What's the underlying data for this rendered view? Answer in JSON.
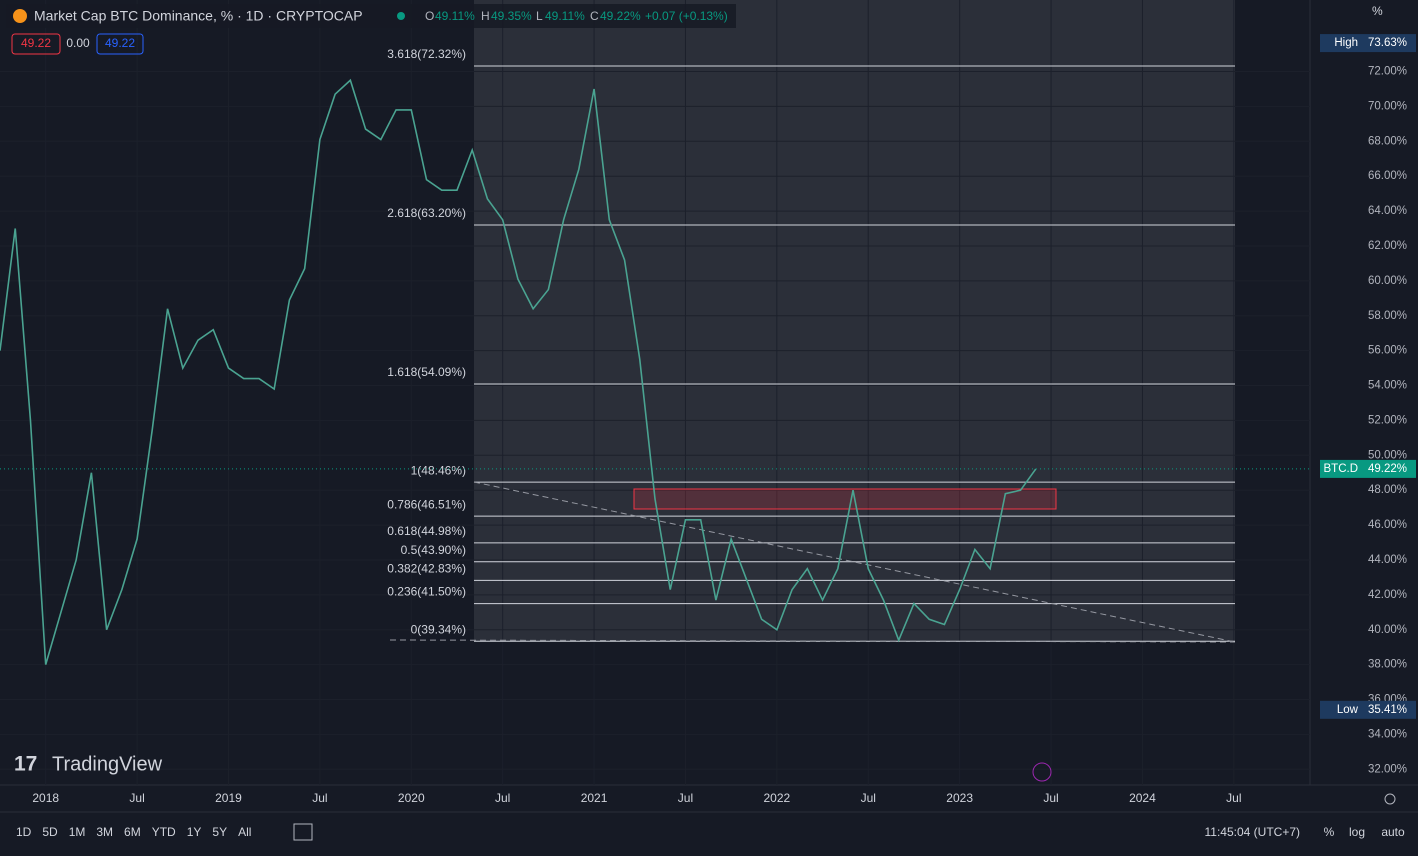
{
  "header": {
    "symbol": "Market Cap BTC Dominance, % · 1D · CRYPTOCAP",
    "o_label": "O",
    "o": "49.11%",
    "h_label": "H",
    "h": "49.35%",
    "l_label": "L",
    "l": "49.11%",
    "c_label": "C",
    "c": "49.22%",
    "change": "+0.07 (+0.13%)",
    "box1": "49.22",
    "box2": "0.00",
    "box3": "49.22",
    "logo": "TradingView"
  },
  "toolbar": {
    "ranges": [
      "1D",
      "5D",
      "1M",
      "3M",
      "6M",
      "YTD",
      "1Y",
      "5Y",
      "All"
    ],
    "time": "11:45:04 (UTC+7)",
    "pct": "%",
    "log": "log",
    "auto": "auto"
  },
  "chart_data": {
    "type": "line",
    "color": "#4aa391",
    "unit": "%",
    "x": [
      "2017-10",
      "2017-11",
      "2017-12",
      "2018-01",
      "2018-02",
      "2018-03",
      "2018-04",
      "2018-05",
      "2018-06",
      "2018-07",
      "2018-08",
      "2018-09",
      "2018-10",
      "2018-11",
      "2018-12",
      "2019-01",
      "2019-02",
      "2019-03",
      "2019-04",
      "2019-05",
      "2019-06",
      "2019-07",
      "2019-08",
      "2019-09",
      "2019-10",
      "2019-11",
      "2019-12",
      "2020-01",
      "2020-02",
      "2020-03",
      "2020-04",
      "2020-05",
      "2020-06",
      "2020-07",
      "2020-08",
      "2020-09",
      "2020-10",
      "2020-11",
      "2020-12",
      "2021-01",
      "2021-02",
      "2021-03",
      "2021-04",
      "2021-05",
      "2021-06",
      "2021-07",
      "2021-08",
      "2021-09",
      "2021-10",
      "2021-11",
      "2021-12",
      "2022-01",
      "2022-02",
      "2022-03",
      "2022-04",
      "2022-05",
      "2022-06",
      "2022-07",
      "2022-08",
      "2022-09",
      "2022-10",
      "2022-11",
      "2022-12",
      "2023-01",
      "2023-02",
      "2023-03",
      "2023-04",
      "2023-05",
      "2023-06"
    ],
    "values": [
      56,
      63,
      52,
      38,
      41,
      44,
      49,
      40,
      42.3,
      45.2,
      51.5,
      58.4,
      55,
      56.6,
      57.2,
      55,
      54.4,
      54.4,
      53.8,
      58.9,
      60.7,
      68.1,
      70.7,
      71.5,
      68.7,
      68.1,
      69.8,
      69.8,
      65.8,
      65.2,
      65.2,
      67.5,
      64.7,
      63.5,
      60.1,
      58.4,
      59.5,
      63.5,
      66.4,
      71,
      63.5,
      61.2,
      55.5,
      47.5,
      42.3,
      46.3,
      46.3,
      41.7,
      45.2,
      42.9,
      40.6,
      40,
      42.3,
      43.5,
      41.7,
      43.5,
      48,
      43.5,
      41.7,
      39.4,
      41.5,
      40.6,
      40.3,
      42.3,
      44.6,
      43.5,
      47.8,
      48,
      49.22
    ],
    "xlim": [
      "2017-10",
      "2024-12"
    ],
    "xticks": [
      {
        "value": "2018-01",
        "label": "2018"
      },
      {
        "value": "2018-07",
        "label": "Jul"
      },
      {
        "value": "2019-01",
        "label": "2019"
      },
      {
        "value": "2019-07",
        "label": "Jul"
      },
      {
        "value": "2020-01",
        "label": "2020"
      },
      {
        "value": "2020-07",
        "label": "Jul"
      },
      {
        "value": "2021-01",
        "label": "2021"
      },
      {
        "value": "2021-07",
        "label": "Jul"
      },
      {
        "value": "2022-01",
        "label": "2022"
      },
      {
        "value": "2022-07",
        "label": "Jul"
      },
      {
        "value": "2023-01",
        "label": "2023"
      },
      {
        "value": "2023-07",
        "label": "Jul"
      },
      {
        "value": "2024-01",
        "label": "2024"
      },
      {
        "value": "2024-07",
        "label": "Jul"
      }
    ],
    "ylim": [
      31.1,
      76.1
    ],
    "yticks": [
      {
        "value": 32,
        "label": "32.00%"
      },
      {
        "value": 34,
        "label": "34.00%"
      },
      {
        "value": 36,
        "label": "36.00%"
      },
      {
        "value": 38,
        "label": "38.00%"
      },
      {
        "value": 40,
        "label": "40.00%"
      },
      {
        "value": 42,
        "label": "42.00%"
      },
      {
        "value": 44,
        "label": "44.00%"
      },
      {
        "value": 46,
        "label": "46.00%"
      },
      {
        "value": 48,
        "label": "48.00%"
      },
      {
        "value": 50,
        "label": "50.00%"
      },
      {
        "value": 52,
        "label": "52.00%"
      },
      {
        "value": 54,
        "label": "54.00%"
      },
      {
        "value": 56,
        "label": "56.00%"
      },
      {
        "value": 58,
        "label": "58.00%"
      },
      {
        "value": 60,
        "label": "60.00%"
      },
      {
        "value": 62,
        "label": "62.00%"
      },
      {
        "value": 64,
        "label": "64.00%"
      },
      {
        "value": 66,
        "label": "66.00%"
      },
      {
        "value": 68,
        "label": "68.00%"
      },
      {
        "value": 70,
        "label": "70.00%"
      },
      {
        "value": 72,
        "label": "72.00%"
      }
    ],
    "fib_levels": [
      {
        "label": "3.618(72.32%)",
        "value": 72.32
      },
      {
        "label": "2.618(63.20%)",
        "value": 63.2
      },
      {
        "label": "1.618(54.09%)",
        "value": 54.09
      },
      {
        "label": "1(48.46%)",
        "value": 48.46
      },
      {
        "label": "0.786(46.51%)",
        "value": 46.51
      },
      {
        "label": "0.618(44.98%)",
        "value": 44.98
      },
      {
        "label": "0.5(43.90%)",
        "value": 43.9
      },
      {
        "label": "0.382(42.83%)",
        "value": 42.83
      },
      {
        "label": "0.236(41.50%)",
        "value": 41.5
      },
      {
        "label": "0(39.34%)",
        "value": 39.34
      }
    ],
    "markers": [
      {
        "name": "High",
        "value": 73.63,
        "value_label": "73.63%",
        "color": "#1e3a5f"
      },
      {
        "name": "BTC.D",
        "value": 49.22,
        "value_label": "49.22%",
        "color": "#089981"
      },
      {
        "name": "Low",
        "value": 35.41,
        "value_label": "35.41%",
        "color": "#1e3a5f"
      }
    ]
  }
}
